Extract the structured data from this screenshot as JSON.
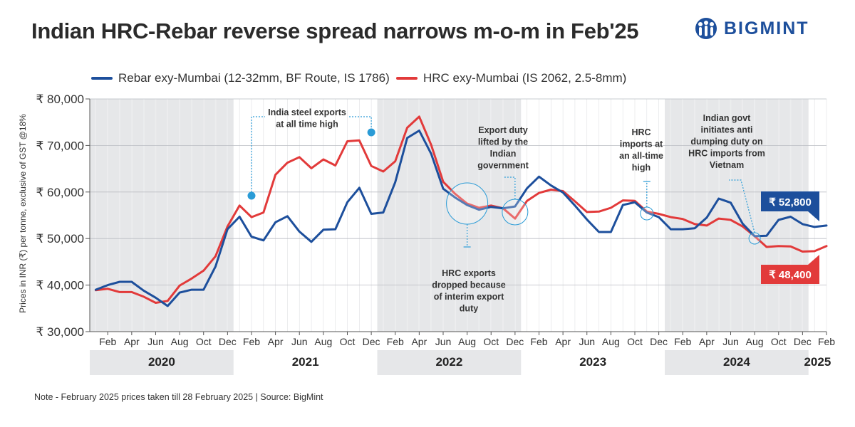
{
  "title": "Indian HRC-Rebar reverse spread narrows m-o-m in Feb'25",
  "logo": {
    "text": "BIGMINT",
    "icon": "people-logo-icon"
  },
  "note": "Note - February 2025 prices taken till  28 February 2025 | Source: BigMint",
  "colors": {
    "rebar": "#1d4f9c",
    "hrc": "#e23a3a",
    "shade": "#e6e7e9",
    "accent": "#2a9bd6"
  },
  "chart_data": {
    "type": "line",
    "ylabel": "Prices in INR (₹) per tonne, exclusive of GST @18%",
    "ylim": [
      30000,
      80000
    ],
    "yticks": [
      "₹ 30,000",
      "₹ 40,000",
      "₹ 50,000",
      "₹ 60,000",
      "₹ 70,000",
      "₹ 80,000"
    ],
    "xtick_labels": [
      "Feb",
      "Apr",
      "Jun",
      "Aug",
      "Oct",
      "Dec",
      "Feb",
      "Apr",
      "Jun",
      "Aug",
      "Oct",
      "Dec",
      "Feb",
      "Apr",
      "Jun",
      "Aug",
      "Oct",
      "Dec",
      "Feb",
      "Apr",
      "Jun",
      "Aug",
      "Oct",
      "Dec",
      "Feb",
      "Apr",
      "Jun",
      "Aug",
      "Oct",
      "Dec",
      "Feb"
    ],
    "years": [
      "2020",
      "2021",
      "2022",
      "2023",
      "2024",
      "2025"
    ],
    "x": [
      "Jan-20",
      "Feb-20",
      "Mar-20",
      "Apr-20",
      "May-20",
      "Jun-20",
      "Jul-20",
      "Aug-20",
      "Sep-20",
      "Oct-20",
      "Nov-20",
      "Dec-20",
      "Jan-21",
      "Feb-21",
      "Mar-21",
      "Apr-21",
      "May-21",
      "Jun-21",
      "Jul-21",
      "Aug-21",
      "Sep-21",
      "Oct-21",
      "Nov-21",
      "Dec-21",
      "Jan-22",
      "Feb-22",
      "Mar-22",
      "Apr-22",
      "May-22",
      "Jun-22",
      "Jul-22",
      "Aug-22",
      "Sep-22",
      "Oct-22",
      "Nov-22",
      "Dec-22",
      "Jan-23",
      "Feb-23",
      "Mar-23",
      "Apr-23",
      "May-23",
      "Jun-23",
      "Jul-23",
      "Aug-23",
      "Sep-23",
      "Oct-23",
      "Nov-23",
      "Dec-23",
      "Jan-24",
      "Feb-24",
      "Mar-24",
      "Apr-24",
      "May-24",
      "Jun-24",
      "Jul-24",
      "Aug-24",
      "Sep-24",
      "Oct-24",
      "Nov-24",
      "Dec-24",
      "Jan-25",
      "Feb-25"
    ],
    "series": [
      {
        "name": "Rebar exy-Mumbai (12-32mm, BF Route, IS 1786)",
        "values": [
          39000,
          40000,
          40700,
          40700,
          38800,
          37300,
          35500,
          38400,
          39000,
          39000,
          44000,
          52000,
          54700,
          50400,
          49600,
          53500,
          54800,
          51500,
          49300,
          51900,
          52000,
          57800,
          60900,
          55300,
          55600,
          62100,
          71600,
          73200,
          68200,
          60700,
          58800,
          57200,
          56200,
          56800,
          56500,
          56900,
          60800,
          63300,
          61400,
          59900,
          57100,
          54100,
          51400,
          51400,
          57200,
          57800,
          55600,
          54600,
          52000,
          52000,
          52200,
          54500,
          58600,
          57700,
          53200,
          50500,
          50600,
          54000,
          54700,
          53100,
          52500,
          52800
        ]
      },
      {
        "name": "HRC exy-Mumbai (IS 2062, 2.5-8mm)",
        "values": [
          38900,
          39200,
          38500,
          38500,
          37500,
          36200,
          36600,
          39900,
          41400,
          43100,
          46200,
          52600,
          57100,
          54600,
          55600,
          63700,
          66300,
          67500,
          65100,
          67000,
          65700,
          70900,
          71100,
          65600,
          64400,
          66600,
          73800,
          76200,
          70100,
          62200,
          59600,
          57500,
          56600,
          57100,
          56500,
          54300,
          58100,
          59800,
          60500,
          60200,
          58000,
          55700,
          55800,
          56600,
          58200,
          58100,
          55800,
          55300,
          54600,
          54200,
          53100,
          52800,
          54300,
          54000,
          52600,
          50500,
          48200,
          48400,
          48300,
          47200,
          47300,
          48400
        ]
      }
    ],
    "callouts": {
      "rebar_last": "₹ 52,800",
      "hrc_last": "₹ 48,400"
    },
    "annotations": [
      {
        "lines": [
          "India steel exports",
          "at all time high"
        ]
      },
      {
        "lines": [
          "Export duty",
          "lifted by the",
          "Indian",
          "government"
        ]
      },
      {
        "lines": [
          "HRC exports",
          "dropped because",
          "of interim export",
          "duty"
        ]
      },
      {
        "lines": [
          "HRC",
          "imports at",
          "an all-time",
          "high"
        ]
      },
      {
        "lines": [
          "Indian govt",
          "initiates anti",
          "dumping duty on",
          "HRC imports from",
          "Vietnam"
        ]
      }
    ]
  }
}
